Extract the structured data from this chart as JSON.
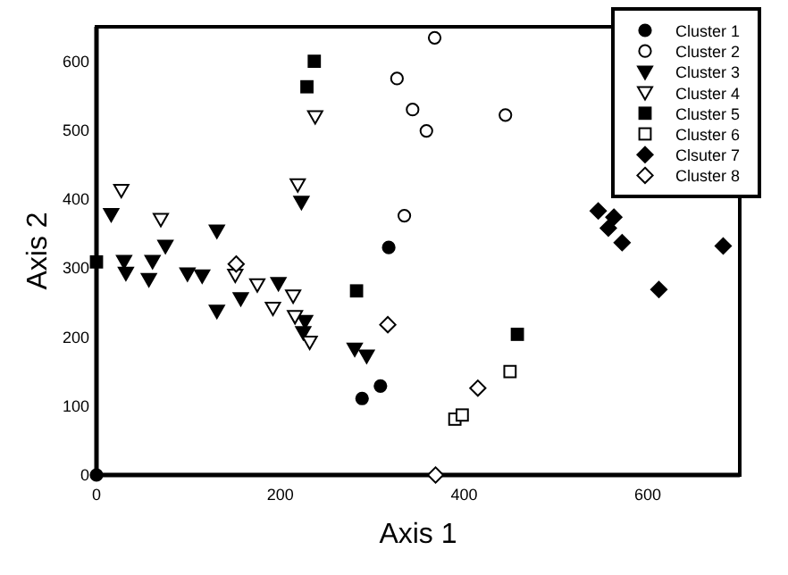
{
  "chart_data": {
    "type": "scatter",
    "xlabel": "Axis 1",
    "ylabel": "Axis 2",
    "xlim": [
      0,
      700
    ],
    "ylim": [
      0,
      650
    ],
    "xticks": [
      0,
      200,
      400,
      600
    ],
    "yticks": [
      0,
      100,
      200,
      300,
      400,
      500,
      600
    ],
    "grid": false,
    "legend": "top right",
    "series": [
      {
        "name": "Cluster 1",
        "color": "#000000",
        "marker": "circle",
        "x": [
          0,
          318,
          289,
          309
        ],
        "values": [
          0,
          330,
          111,
          129
        ]
      },
      {
        "name": "Cluster 2",
        "color": "#000000",
        "marker": "circle-open",
        "x": [
          368,
          327,
          344,
          359,
          445,
          335
        ],
        "values": [
          634,
          575,
          530,
          499,
          522,
          376
        ]
      },
      {
        "name": "Cluster 3",
        "color": "#000000",
        "marker": "triangle-down",
        "x": [
          16,
          30,
          32,
          61,
          57,
          75,
          99,
          115,
          131,
          131,
          157,
          198,
          227,
          225,
          223,
          281,
          294
        ],
        "values": [
          378,
          310,
          293,
          310,
          284,
          332,
          292,
          289,
          354,
          238,
          256,
          278,
          223,
          207,
          396,
          183,
          173
        ]
      },
      {
        "name": "Cluster 4",
        "color": "#000000",
        "marker": "triangle-down-open",
        "x": [
          27,
          70,
          151,
          175,
          192,
          214,
          216,
          232,
          219,
          238
        ],
        "values": [
          413,
          371,
          290,
          276,
          242,
          260,
          230,
          193,
          421,
          520
        ]
      },
      {
        "name": "Cluster 5",
        "color": "#000000",
        "marker": "square",
        "x": [
          0,
          229,
          237,
          283,
          458
        ],
        "values": [
          309,
          563,
          600,
          267,
          204
        ]
      },
      {
        "name": "Cluster 6",
        "color": "#000000",
        "marker": "square-open",
        "x": [
          390,
          398,
          450
        ],
        "values": [
          81,
          87,
          150
        ]
      },
      {
        "name": "Clsuter 7",
        "color": "#000000",
        "marker": "diamond",
        "x": [
          546,
          563,
          557,
          572,
          612,
          682
        ],
        "values": [
          383,
          374,
          358,
          337,
          269,
          332
        ]
      },
      {
        "name": "Cluster 8",
        "color": "#000000",
        "marker": "diamond-open",
        "x": [
          152,
          317,
          415,
          369
        ],
        "values": [
          306,
          218,
          126,
          0
        ]
      }
    ]
  }
}
